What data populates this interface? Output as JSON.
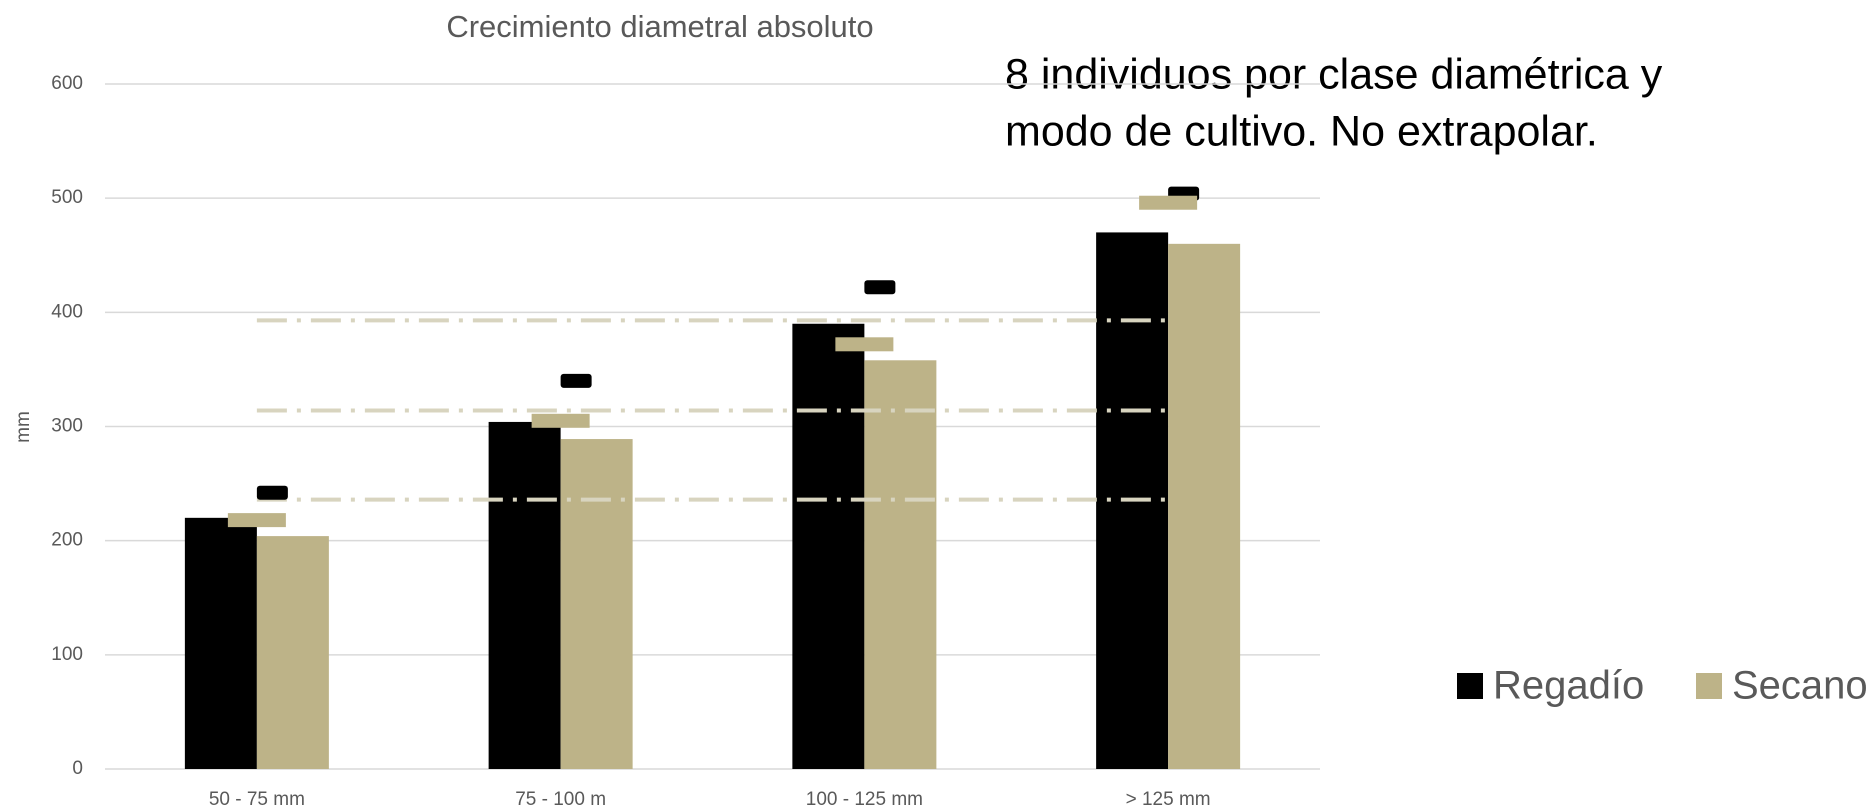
{
  "chart_data": {
    "type": "bar",
    "title": "Crecimiento diametral absoluto",
    "annotation": [
      "8 individuos por clase diamétrica y",
      "modo de cultivo. No extrapolar."
    ],
    "y_label": "mm",
    "categories": [
      "50 - 75 mm",
      "75 - 100 m",
      "100 - 125 mm",
      "> 125 mm"
    ],
    "series": [
      {
        "name": "Regadío",
        "color": "#000000",
        "values": [
          220,
          304,
          390,
          470
        ],
        "marker_values": [
          242,
          340,
          422,
          504
        ]
      },
      {
        "name": "Secano",
        "color": "#bdb388",
        "values": [
          204,
          289,
          358,
          460
        ],
        "marker_values": [
          218,
          305,
          372,
          496
        ]
      }
    ],
    "reference_lines": [
      236,
      314,
      393
    ],
    "reference_color": "#d8d4bf",
    "ylim": [
      0,
      600
    ],
    "yticks": [
      0,
      100,
      200,
      300,
      400,
      500,
      600
    ],
    "grid": true,
    "legend": "right"
  }
}
